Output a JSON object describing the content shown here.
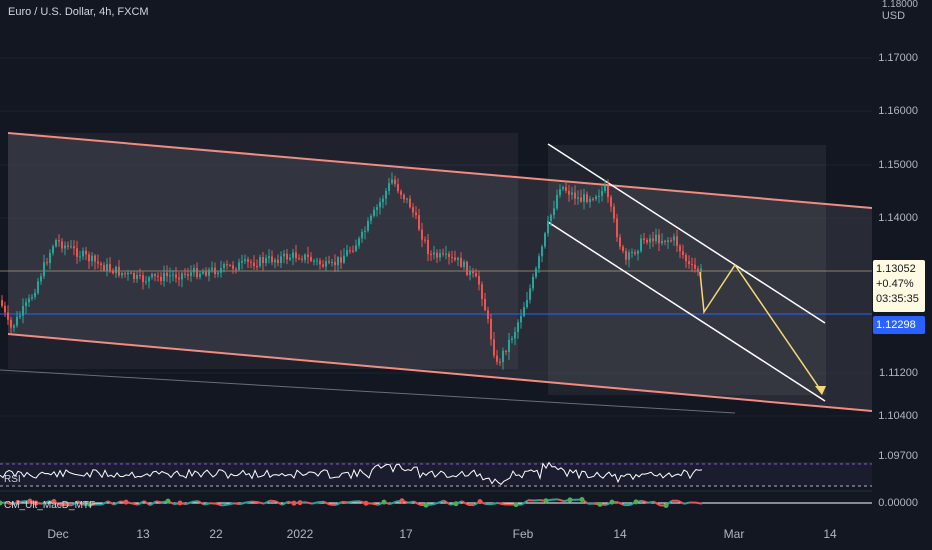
{
  "symbol_title": "Euro / U.S. Dollar, 4h, FXCM",
  "y_axis": {
    "currency_top": "1.18000",
    "currency": "USD",
    "labels": [
      "1.17000",
      "1.16000",
      "1.15000",
      "1.14000",
      "1.13052",
      "1.12298",
      "1.11200",
      "1.10400",
      "1.09700",
      "0.00000"
    ]
  },
  "price_box": {
    "price": "1.13052",
    "change": "+0.47%",
    "countdown": "03:35:35"
  },
  "line_box": {
    "price": "1.12298"
  },
  "x_axis": {
    "labels": [
      "Dec",
      "13",
      "22",
      "2022",
      "17",
      "Feb",
      "14",
      "Mar",
      "14"
    ]
  },
  "indicators": {
    "rsi_label": "RSI",
    "macd_label": "CM_Ult_MacD_MTF"
  },
  "colors": {
    "background": "#131722",
    "channel_line": "#f28b82",
    "channel_fill": "#3a3d46",
    "inner_channel": "#ffffff",
    "projection": "#f7d774",
    "candle_up": "#26a69a",
    "candle_down": "#ef5350",
    "horizontal_line": "#2962ff",
    "last_price_line": "#c8b98a"
  },
  "chart_data": {
    "type": "candlestick",
    "symbol": "EURUSD",
    "interval": "4h",
    "last_price": 1.13052,
    "horizontal_level": 1.12298,
    "ylim": [
      1.096,
      1.181
    ],
    "y_ticks": [
      1.17,
      1.16,
      1.15,
      1.14,
      1.112,
      1.104,
      1.097
    ],
    "x_ticks": [
      "Dec",
      "13",
      "22",
      "2022",
      "17",
      "Feb",
      "14",
      "Mar",
      "14"
    ]
  }
}
